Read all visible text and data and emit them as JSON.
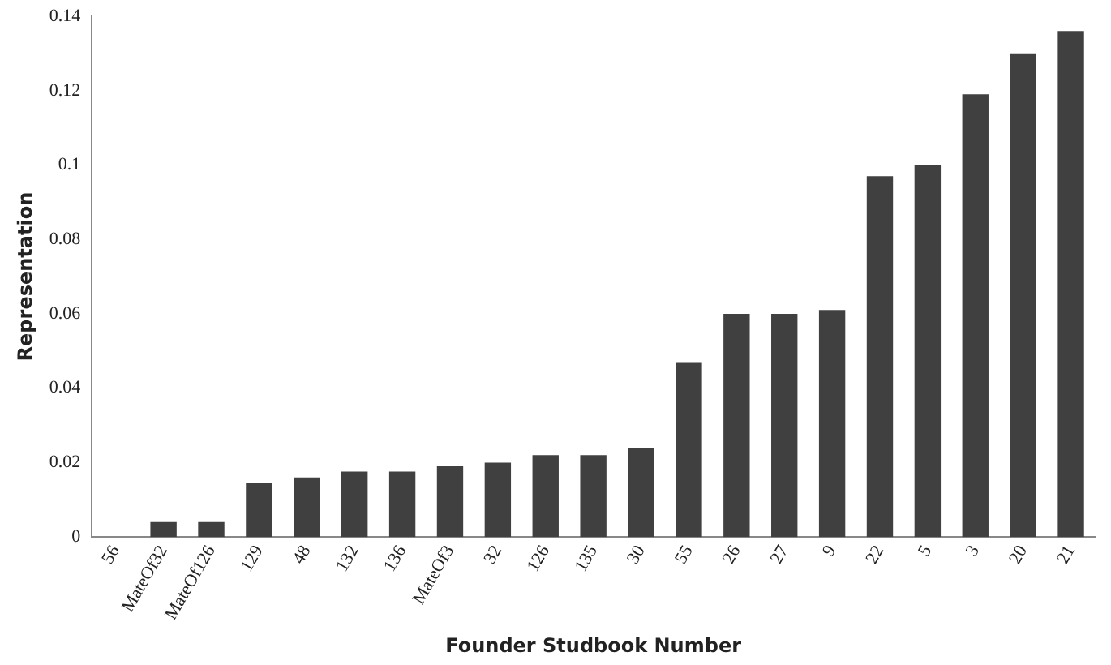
{
  "chart_data": {
    "type": "bar",
    "xlabel": "Founder Studbook Number",
    "ylabel": "Representation",
    "categories": [
      "56",
      "MateOf32",
      "MateOf126",
      "129",
      "48",
      "132",
      "136",
      "MateOf3",
      "32",
      "126",
      "135",
      "30",
      "55",
      "26",
      "27",
      "9",
      "22",
      "5",
      "3",
      "20",
      "21"
    ],
    "values": [
      0,
      0.004,
      0.004,
      0.0145,
      0.016,
      0.0176,
      0.0176,
      0.019,
      0.02,
      0.022,
      0.022,
      0.024,
      0.047,
      0.06,
      0.06,
      0.061,
      0.097,
      0.1,
      0.119,
      0.13,
      0.136
    ],
    "color": "#404040",
    "ylim": [
      0,
      0.14
    ],
    "yticks": [
      0,
      0.02,
      0.04,
      0.06,
      0.08,
      0.1,
      0.12,
      0.14
    ],
    "grid": false,
    "legend": false
  }
}
